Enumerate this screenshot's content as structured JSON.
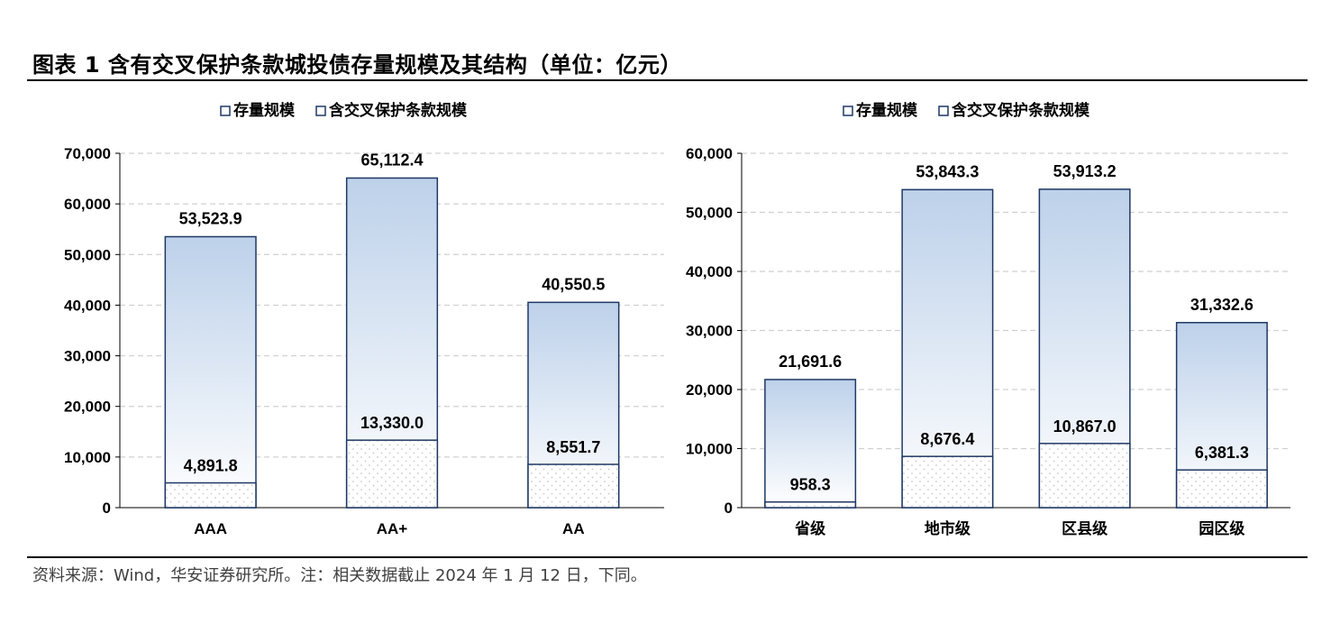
{
  "header": {
    "title": "图表 1 含有交叉保护条款城投债存量规模及其结构（单位：亿元）"
  },
  "footer": {
    "source": "资料来源：Wind，华安证券研究所。注：相关数据截止 2024 年 1 月 12 日，下同。"
  },
  "colors": {
    "bar_outline": "#1F3864",
    "gradient_top": "#BDD1EA",
    "gradient_bottom": "#FFFFFF",
    "dot_fill": "#C8C8C8",
    "grid": "#D0D0D0"
  },
  "chart_data": [
    {
      "type": "bar",
      "categories": [
        "AAA",
        "AA+",
        "AA"
      ],
      "series": [
        {
          "name": "存量规模",
          "values": [
            53523.9,
            65112.4,
            40550.5
          ],
          "labels": [
            "53,523.9",
            "65,112.4",
            "40,550.5"
          ]
        },
        {
          "name": "含交叉保护条款规模",
          "values": [
            4891.8,
            13330.0,
            8551.7
          ],
          "labels": [
            "4,891.8",
            "13,330.0",
            "8,551.7"
          ]
        }
      ],
      "ylim": [
        0,
        70000
      ],
      "yticks": [
        0,
        10000,
        20000,
        30000,
        40000,
        50000,
        60000,
        70000
      ],
      "ytick_labels": [
        "0",
        "10,000",
        "20,000",
        "30,000",
        "40,000",
        "50,000",
        "60,000",
        "70,000"
      ],
      "grid": true,
      "legend": "top-center",
      "xlabel": "",
      "ylabel": ""
    },
    {
      "type": "bar",
      "categories": [
        "省级",
        "地市级",
        "区县级",
        "园区级"
      ],
      "series": [
        {
          "name": "存量规模",
          "values": [
            21691.6,
            53843.3,
            53913.2,
            31332.6
          ],
          "labels": [
            "21,691.6",
            "53,843.3",
            "53,913.2",
            "31,332.6"
          ]
        },
        {
          "name": "含交叉保护条款规模",
          "values": [
            958.3,
            8676.4,
            10867.0,
            6381.3
          ],
          "labels": [
            "958.3",
            "8,676.4",
            "10,867.0",
            "6,381.3"
          ]
        }
      ],
      "ylim": [
        0,
        60000
      ],
      "yticks": [
        0,
        10000,
        20000,
        30000,
        40000,
        50000,
        60000
      ],
      "ytick_labels": [
        "0",
        "10,000",
        "20,000",
        "30,000",
        "40,000",
        "50,000",
        "60,000"
      ],
      "grid": true,
      "legend": "top-center",
      "xlabel": "",
      "ylabel": ""
    }
  ]
}
